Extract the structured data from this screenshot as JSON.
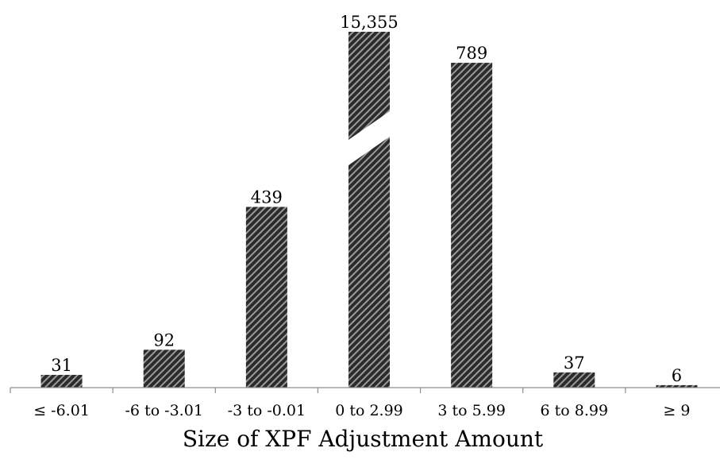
{
  "chart_data": {
    "type": "bar",
    "title": "",
    "xlabel": "Size of XPF Adjustment Amount",
    "ylabel": "",
    "categories": [
      "≤ -6.01",
      "-6 to -3.01",
      "-3 to -0.01",
      "0 to 2.99",
      "3 to 5.99",
      "6 to 8.99",
      "≥ 9"
    ],
    "values": [
      31,
      92,
      439,
      15355,
      789,
      37,
      6
    ],
    "value_labels": [
      "31",
      "92",
      "439",
      "15,355",
      "789",
      "37",
      "6"
    ],
    "ylim": [
      0,
      820
    ],
    "broken_bar_index": 3,
    "grid": false,
    "legend": "none",
    "bar_fill": "hatched",
    "colors": {
      "bar_dark": "#2b2b2b",
      "bar_stripe": "#9a9a9a",
      "axis": "#8c8c8c"
    }
  }
}
